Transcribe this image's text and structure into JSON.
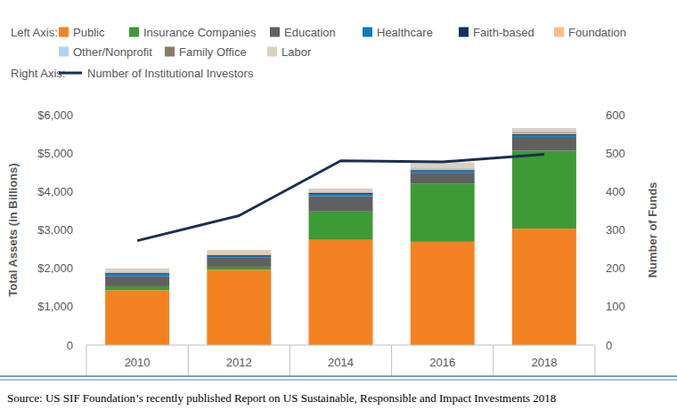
{
  "chart_data": {
    "type": "bar",
    "stacked": true,
    "legend": "top",
    "grid": false,
    "annotations": [
      "Left Axis:",
      "Right Axis:"
    ],
    "ylabel": "Total Assets (in Billions)",
    "y2label": "Number of Funds",
    "source": "Source: US SIF Foundation’s recently published Report on US Sustainable, Responsible and Impact Investments 2018",
    "categories": [
      "2010",
      "2012",
      "2014",
      "2016",
      "2018"
    ],
    "ylim": [
      0,
      6000
    ],
    "yticks": [
      0,
      {
        "value": 1000,
        "label": "$1,000"
      },
      {
        "value": 2000,
        "label": "$2,000"
      },
      {
        "value": 3000,
        "label": "$3,000"
      },
      {
        "value": 4000,
        "label": "$4,000"
      },
      {
        "value": 5000,
        "label": "$5,000"
      },
      {
        "value": 6000,
        "label": "$6,000"
      }
    ],
    "y2lim": [
      0,
      600
    ],
    "y2ticks": [
      0,
      100,
      200,
      300,
      400,
      500,
      600
    ],
    "series": [
      {
        "name": "Public",
        "color": "#f58220",
        "values": [
          1430,
          1960,
          2740,
          2690,
          3030
        ]
      },
      {
        "name": "Insurance Companies",
        "color": "#3d9b35",
        "values": [
          100,
          80,
          740,
          1510,
          2030
        ]
      },
      {
        "name": "Education",
        "color": "#606060",
        "values": [
          260,
          250,
          400,
          290,
          360
        ]
      },
      {
        "name": "Healthcare",
        "color": "#0b7dc3",
        "values": [
          70,
          30,
          60,
          60,
          40
        ]
      },
      {
        "name": "Faith-based",
        "color": "#1b2f5a",
        "values": [
          25,
          20,
          30,
          20,
          30
        ]
      },
      {
        "name": "Foundation",
        "color": "#f9bb8c",
        "values": [
          20,
          30,
          20,
          15,
          20
        ]
      },
      {
        "name": "Other/Nonprofit",
        "color": "#b0d4ee",
        "values": [
          15,
          15,
          10,
          10,
          10
        ]
      },
      {
        "name": "Family Office",
        "color": "#8a7c68",
        "values": [
          5,
          10,
          5,
          10,
          30
        ]
      },
      {
        "name": "Labor",
        "color": "#d9d0c2",
        "values": [
          75,
          85,
          75,
          155,
          100
        ]
      },
      {
        "name": "Number of Institutional Investors",
        "color": "#1b2f55",
        "type": "line",
        "axis": "y2",
        "values": [
          272,
          337,
          480,
          477,
          497
        ]
      }
    ]
  }
}
